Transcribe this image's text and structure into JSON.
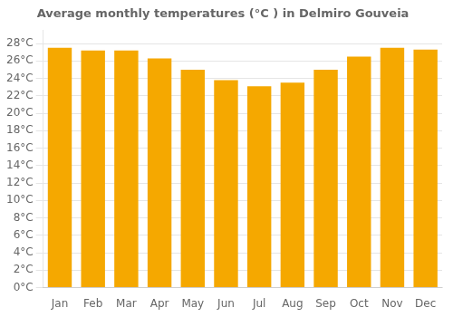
{
  "chart_data": {
    "type": "bar",
    "title": "Average monthly temperatures (°C ) in Delmiro Gouveia",
    "categories": [
      "Jan",
      "Feb",
      "Mar",
      "Apr",
      "May",
      "Jun",
      "Jul",
      "Aug",
      "Sep",
      "Oct",
      "Nov",
      "Dec"
    ],
    "values": [
      27.5,
      27.2,
      27.2,
      26.3,
      25.0,
      23.8,
      23.1,
      23.5,
      25.0,
      26.5,
      27.5,
      27.3
    ],
    "color": "#F5A800",
    "ylim": [
      0,
      29.5
    ],
    "yticks": [
      {
        "value": 0,
        "label": "0°C"
      },
      {
        "value": 2,
        "label": "2°C"
      },
      {
        "value": 4,
        "label": "4°C"
      },
      {
        "value": 6,
        "label": "6°C"
      },
      {
        "value": 8,
        "label": "8°C"
      },
      {
        "value": 10,
        "label": "10°C"
      },
      {
        "value": 12,
        "label": "12°C"
      },
      {
        "value": 14,
        "label": "14°C"
      },
      {
        "value": 16,
        "label": "16°C"
      },
      {
        "value": 18,
        "label": "18°C"
      },
      {
        "value": 20,
        "label": "20°C"
      },
      {
        "value": 22,
        "label": "22°C"
      },
      {
        "value": 24,
        "label": "24°C"
      },
      {
        "value": 26,
        "label": "26°C"
      },
      {
        "value": 28,
        "label": "28°C"
      }
    ],
    "grid": "y"
  }
}
